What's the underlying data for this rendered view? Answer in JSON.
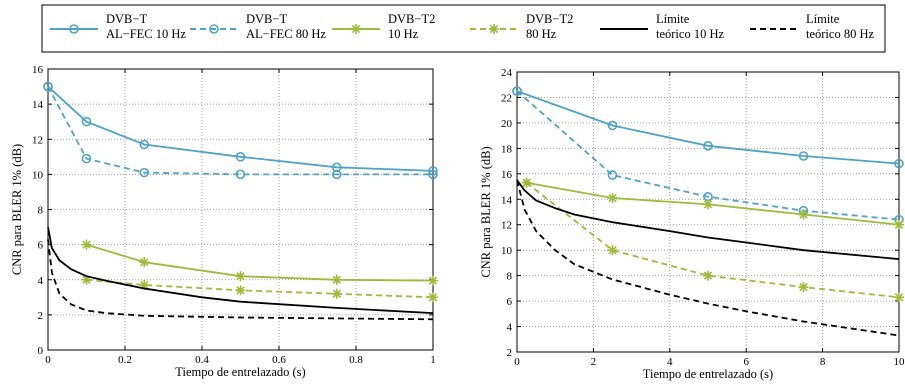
{
  "legend": [
    {
      "label": [
        "DVB−T",
        "AL−FEC 10 Hz"
      ],
      "color": "#4fa3c7",
      "dash": false,
      "marker": "circle"
    },
    {
      "label": [
        "DVB−T",
        "AL−FEC 80 Hz"
      ],
      "color": "#4fa3c7",
      "dash": true,
      "marker": "circle"
    },
    {
      "label": [
        "DVB−T2",
        "10 Hz"
      ],
      "color": "#9dbb3b",
      "dash": false,
      "marker": "star"
    },
    {
      "label": [
        "DVB−T2",
        "80 Hz"
      ],
      "color": "#9dbb3b",
      "dash": true,
      "marker": "star"
    },
    {
      "label": [
        "Límite",
        "teórico 10 Hz"
      ],
      "color": "#000000",
      "dash": false,
      "marker": "none"
    },
    {
      "label": [
        "Límite",
        "teórico 80 Hz"
      ],
      "color": "#000000",
      "dash": true,
      "marker": "none"
    }
  ],
  "chart_data": [
    {
      "type": "line",
      "xlabel": "Tiempo de entrelazado (s)",
      "ylabel": "CNR para BLER 1% (dB)",
      "xlim": [
        0,
        1
      ],
      "ylim": [
        0,
        16
      ],
      "xticks": [
        0,
        0.2,
        0.4,
        0.6,
        0.8,
        1
      ],
      "yticks": [
        0,
        2,
        4,
        6,
        8,
        10,
        12,
        14,
        16
      ],
      "grid": true,
      "series": [
        {
          "name": "DVB−T AL−FEC 10 Hz",
          "color": "#4fa3c7",
          "dash": false,
          "marker": "circle",
          "x": [
            0,
            0.1,
            0.25,
            0.5,
            0.75,
            1
          ],
          "y": [
            15,
            13,
            11.7,
            11,
            10.4,
            10.2
          ]
        },
        {
          "name": "DVB−T AL−FEC 80 Hz",
          "color": "#4fa3c7",
          "dash": true,
          "marker": "circle",
          "x": [
            0,
            0.1,
            0.25,
            0.5,
            0.75,
            1
          ],
          "y": [
            15,
            10.9,
            10.1,
            10,
            10,
            10
          ]
        },
        {
          "name": "DVB−T2 10 Hz",
          "color": "#9dbb3b",
          "dash": false,
          "marker": "star",
          "x": [
            0.1,
            0.25,
            0.5,
            0.75,
            1
          ],
          "y": [
            6,
            5,
            4.2,
            4,
            3.95
          ]
        },
        {
          "name": "DVB−T2 80 Hz",
          "color": "#9dbb3b",
          "dash": true,
          "marker": "star",
          "x": [
            0.1,
            0.25,
            0.5,
            0.75,
            1
          ],
          "y": [
            4,
            3.7,
            3.4,
            3.2,
            3
          ]
        },
        {
          "name": "Límite teórico 10 Hz",
          "color": "#000000",
          "dash": false,
          "marker": "none",
          "x": [
            0,
            0.01,
            0.03,
            0.06,
            0.1,
            0.15,
            0.25,
            0.4,
            0.5,
            0.75,
            1
          ],
          "y": [
            7,
            5.8,
            5.1,
            4.6,
            4.2,
            3.95,
            3.5,
            3.0,
            2.75,
            2.4,
            2.1
          ]
        },
        {
          "name": "Límite teórico 80 Hz",
          "color": "#000000",
          "dash": true,
          "marker": "none",
          "x": [
            0,
            0.01,
            0.03,
            0.06,
            0.1,
            0.15,
            0.25,
            0.5,
            0.75,
            1
          ],
          "y": [
            6.3,
            4.4,
            3.2,
            2.6,
            2.25,
            2.1,
            1.95,
            1.85,
            1.8,
            1.75
          ]
        }
      ]
    },
    {
      "type": "line",
      "xlabel": "Tiempo de entrelazado (s)",
      "ylabel": "CNR para BLER 1% (dB)",
      "xlim": [
        0,
        10
      ],
      "ylim": [
        2,
        24
      ],
      "xticks": [
        0,
        2,
        4,
        6,
        8,
        10
      ],
      "yticks": [
        2,
        4,
        6,
        8,
        10,
        12,
        14,
        16,
        18,
        20,
        22,
        24
      ],
      "grid": true,
      "series": [
        {
          "name": "DVB−T AL−FEC 10 Hz",
          "color": "#4fa3c7",
          "dash": false,
          "marker": "circle",
          "x": [
            0,
            2.5,
            5,
            7.5,
            10
          ],
          "y": [
            22.5,
            19.8,
            18.2,
            17.4,
            16.8
          ]
        },
        {
          "name": "DVB−T AL−FEC 80 Hz",
          "color": "#4fa3c7",
          "dash": true,
          "marker": "circle",
          "x": [
            0,
            2.5,
            5,
            7.5,
            10
          ],
          "y": [
            22.5,
            15.9,
            14.2,
            13.1,
            12.4
          ]
        },
        {
          "name": "DVB−T2 10 Hz",
          "color": "#9dbb3b",
          "dash": false,
          "marker": "star",
          "x": [
            0.25,
            2.5,
            5,
            7.5,
            10
          ],
          "y": [
            15.3,
            14.1,
            13.6,
            12.8,
            12
          ]
        },
        {
          "name": "DVB−T2 80 Hz",
          "color": "#9dbb3b",
          "dash": true,
          "marker": "star",
          "x": [
            0.25,
            2.5,
            5,
            7.5,
            10
          ],
          "y": [
            15.3,
            10,
            8,
            7.1,
            6.3
          ]
        },
        {
          "name": "Límite teórico 10 Hz",
          "color": "#000000",
          "dash": false,
          "marker": "none",
          "x": [
            0,
            0.2,
            0.5,
            1,
            1.5,
            2.5,
            4,
            5,
            6,
            7.5,
            10
          ],
          "y": [
            15.5,
            14.7,
            13.9,
            13.3,
            12.8,
            12.2,
            11.5,
            11,
            10.6,
            10,
            9.3
          ]
        },
        {
          "name": "Límite teórico 80 Hz",
          "color": "#000000",
          "dash": true,
          "marker": "none",
          "x": [
            0,
            0.2,
            0.5,
            1,
            1.5,
            2.5,
            4,
            5,
            6,
            7.5,
            10
          ],
          "y": [
            15.5,
            13.2,
            11.5,
            10,
            8.9,
            7.7,
            6.5,
            5.8,
            5.2,
            4.4,
            3.3
          ]
        }
      ]
    }
  ]
}
